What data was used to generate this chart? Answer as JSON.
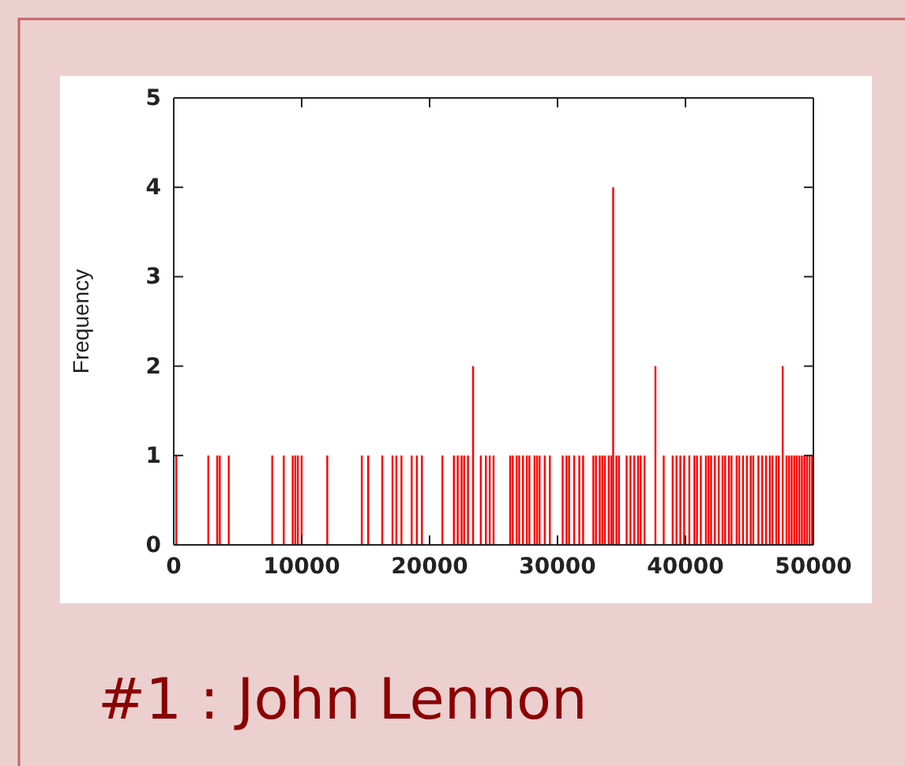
{
  "chart_data": {
    "type": "bar",
    "ylabel": "Frequency",
    "color": "#ff0000",
    "xlim": [
      0,
      50000
    ],
    "xticks": [
      0,
      10000,
      20000,
      30000,
      40000,
      50000
    ],
    "ylim": [
      0,
      5
    ],
    "yticks": [
      0,
      1,
      2,
      3,
      4,
      5
    ],
    "grid": false,
    "annotations": [
      "#1 : John Lennon"
    ],
    "x": [
      200,
      2700,
      3400,
      3600,
      4300,
      7700,
      8600,
      9300,
      9500,
      9700,
      10000,
      12000,
      14700,
      15200,
      16300,
      17100,
      17400,
      17800,
      18600,
      19000,
      19400,
      21000,
      21900,
      22200,
      22500,
      22700,
      23000,
      23400,
      24000,
      24400,
      24700,
      25000,
      26300,
      26500,
      26800,
      27000,
      27300,
      27600,
      27800,
      28200,
      28400,
      28600,
      29000,
      29400,
      30400,
      30700,
      30900,
      31300,
      31700,
      32000,
      32800,
      33000,
      33300,
      33500,
      33700,
      34000,
      34200,
      34350,
      34600,
      34800,
      35400,
      35700,
      36000,
      36300,
      36500,
      36800,
      37650,
      38300,
      39000,
      39300,
      39600,
      39900,
      40300,
      40700,
      40900,
      41200,
      41600,
      41800,
      42000,
      42300,
      42600,
      42900,
      43100,
      43400,
      43600,
      44000,
      44200,
      44500,
      44800,
      45100,
      45300,
      45700,
      46000,
      46300,
      46600,
      46800,
      47100,
      47300,
      47600,
      47900,
      48100,
      48300,
      48500,
      48700,
      48900,
      49100,
      49300,
      49500,
      49700,
      49900
    ],
    "values": [
      1,
      1,
      1,
      1,
      1,
      1,
      1,
      1,
      1,
      1,
      1,
      1,
      1,
      1,
      1,
      1,
      1,
      1,
      1,
      1,
      1,
      1,
      1,
      1,
      1,
      1,
      1,
      2,
      1,
      1,
      1,
      1,
      1,
      1,
      1,
      1,
      1,
      1,
      1,
      1,
      1,
      1,
      1,
      1,
      1,
      1,
      1,
      1,
      1,
      1,
      1,
      1,
      1,
      1,
      1,
      1,
      1,
      4,
      1,
      1,
      1,
      1,
      1,
      1,
      1,
      1,
      2,
      1,
      1,
      1,
      1,
      1,
      1,
      1,
      1,
      1,
      1,
      1,
      1,
      1,
      1,
      1,
      1,
      1,
      1,
      1,
      1,
      1,
      1,
      1,
      1,
      1,
      1,
      1,
      1,
      1,
      1,
      1,
      2,
      1,
      1,
      1,
      1,
      1,
      1,
      1,
      1,
      1,
      1,
      1
    ]
  }
}
